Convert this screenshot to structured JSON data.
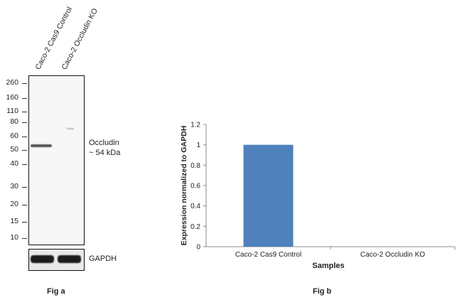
{
  "fig_a": {
    "lanes": [
      "Caco-2 Cas9 Control",
      "Caco-2 Occludin KO"
    ],
    "markers": [
      "260",
      "160",
      "110",
      "80",
      "60",
      "50",
      "40",
      "30",
      "20",
      "15",
      "10"
    ],
    "band_label_line1": "Occludin",
    "band_label_line2": "~ 54 kDa",
    "loading_control": "GAPDH",
    "caption": "Fig a"
  },
  "fig_b": {
    "caption": "Fig b"
  },
  "chart_data": {
    "type": "bar",
    "categories": [
      "Caco-2 Cas9 Control",
      "Caco-2 Occludin KO"
    ],
    "values": [
      1,
      0
    ],
    "title": "",
    "xlabel": "Samples",
    "ylabel": "Expression  normalized to GAPDH",
    "ylim": [
      0,
      1.2
    ],
    "yticks": [
      "0",
      "0.2",
      "0.4",
      "0.6",
      "0.8",
      "1",
      "1.2"
    ],
    "bar_color": "#4f81bd",
    "grid": false
  }
}
